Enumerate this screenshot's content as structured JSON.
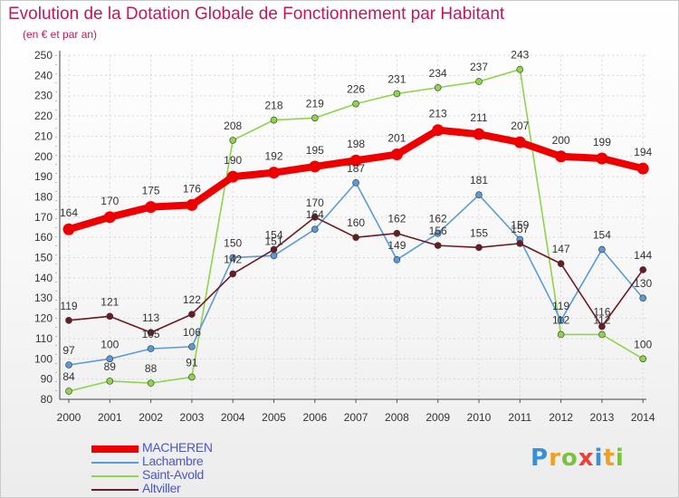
{
  "header": {
    "title": "Evolution de la Dotation Globale de Fonctionnement par Habitant",
    "subtitle": "(en € et par an)"
  },
  "logo": {
    "text": "Proxiti",
    "colors": [
      "#3b8fd6",
      "#f0a020",
      "#7cc140",
      "#e8433a",
      "#3b8fd6",
      "#f0a020",
      "#7cc140"
    ]
  },
  "chart_data": {
    "type": "line",
    "x": [
      "2000",
      "2001",
      "2002",
      "2003",
      "2004",
      "2005",
      "2006",
      "2007",
      "2008",
      "2009",
      "2010",
      "2011",
      "2012",
      "2013",
      "2014"
    ],
    "ylim": [
      80,
      250
    ],
    "yticks": [
      80,
      90,
      100,
      110,
      120,
      130,
      140,
      150,
      160,
      170,
      180,
      190,
      200,
      210,
      220,
      230,
      240,
      250
    ],
    "grid": true,
    "legend_position": "bottom-left",
    "series": [
      {
        "name": "MACHEREN",
        "color": "#ee0000",
        "values": [
          164,
          170,
          175,
          176,
          190,
          192,
          195,
          198,
          201,
          213,
          211,
          207,
          200,
          199,
          194
        ],
        "labels": [
          "164",
          "170",
          "175",
          "176",
          "190",
          "192",
          "195",
          "198",
          "201",
          "213",
          "211",
          "207",
          "200",
          "199",
          "194"
        ]
      },
      {
        "name": "Lachambre",
        "color": "#5b9bd5",
        "values": [
          97,
          100,
          105,
          106,
          150,
          151,
          164,
          187,
          149,
          162,
          181,
          159,
          119,
          154,
          130
        ],
        "labels": [
          "97",
          "100",
          "105",
          "106",
          "150",
          "151",
          "164",
          "187",
          "149",
          "162",
          "181",
          "159",
          "119",
          "154",
          "130"
        ]
      },
      {
        "name": "Saint-Avold",
        "color": "#8fd44c",
        "values": [
          84,
          89,
          88,
          91,
          208,
          218,
          219,
          226,
          231,
          234,
          237,
          243,
          112,
          112,
          100
        ],
        "labels": [
          "84",
          "89",
          "88",
          "91",
          "208",
          "218",
          "219",
          "226",
          "231",
          "234",
          "237",
          "243",
          "112",
          "112",
          "100"
        ]
      },
      {
        "name": "Altviller",
        "color": "#6b1a22",
        "values": [
          119,
          121,
          113,
          122,
          142,
          154,
          170,
          160,
          162,
          156,
          155,
          157,
          147,
          116,
          144
        ],
        "labels": [
          "119",
          "121",
          "113",
          "122",
          "142",
          "154",
          "170",
          "160",
          "162",
          "156",
          "155",
          "157",
          "147",
          "116",
          "144"
        ]
      }
    ]
  },
  "legend": {
    "label_color": "#4a57c8",
    "items": [
      {
        "name": "MACHEREN",
        "color": "#ee0000"
      },
      {
        "name": "Lachambre",
        "color": "#5b9bd5"
      },
      {
        "name": "Saint-Avold",
        "color": "#8fd44c"
      },
      {
        "name": "Altviller",
        "color": "#6b1a22"
      }
    ]
  }
}
